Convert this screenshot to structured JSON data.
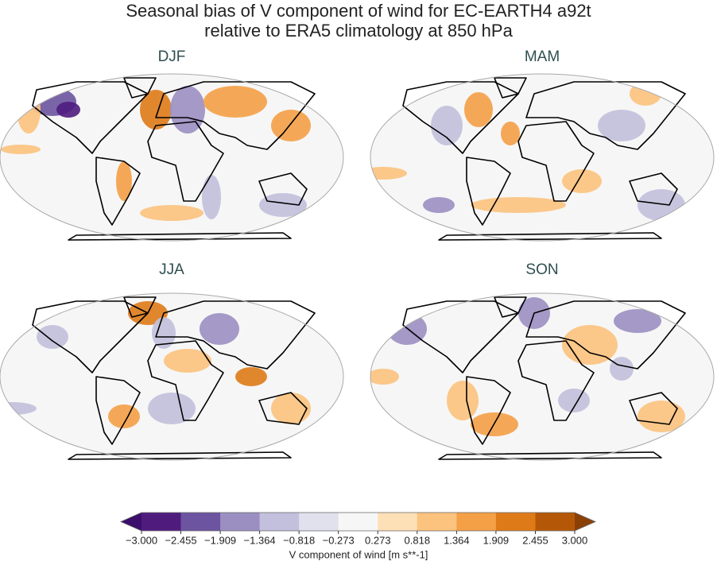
{
  "title": "Seasonal bias of V component of wind for EC-EARTH4 a92t",
  "subtitle": "relative to ERA5 climatology at 850 hPa",
  "panels": [
    {
      "title": "DJF"
    },
    {
      "title": "MAM"
    },
    {
      "title": "JJA"
    },
    {
      "title": "SON"
    }
  ],
  "colorbar": {
    "label": "V component of wind [m s**-1]",
    "ticks": [
      {
        "value": -3.0,
        "label": "−3.000"
      },
      {
        "value": -2.455,
        "label": "−2.455"
      },
      {
        "value": -1.909,
        "label": "−1.909"
      },
      {
        "value": -1.364,
        "label": "−1.364"
      },
      {
        "value": -0.818,
        "label": "−0.818"
      },
      {
        "value": -0.273,
        "label": "−0.273"
      },
      {
        "value": 0.273,
        "label": "0.273"
      },
      {
        "value": 0.818,
        "label": "0.818"
      },
      {
        "value": 1.364,
        "label": "1.364"
      },
      {
        "value": 1.909,
        "label": "1.909"
      },
      {
        "value": 2.455,
        "label": "2.455"
      },
      {
        "value": 3.0,
        "label": "3.000"
      }
    ],
    "colors": [
      "#4f1c7e",
      "#6d54a0",
      "#9b8fc2",
      "#c2c0dc",
      "#e1e1ee",
      "#f6f6f6",
      "#fde0b6",
      "#fcc37e",
      "#f4a046",
      "#de7b18",
      "#b45808"
    ],
    "under_color": "#3b0f6b",
    "over_color": "#8a4108"
  }
}
